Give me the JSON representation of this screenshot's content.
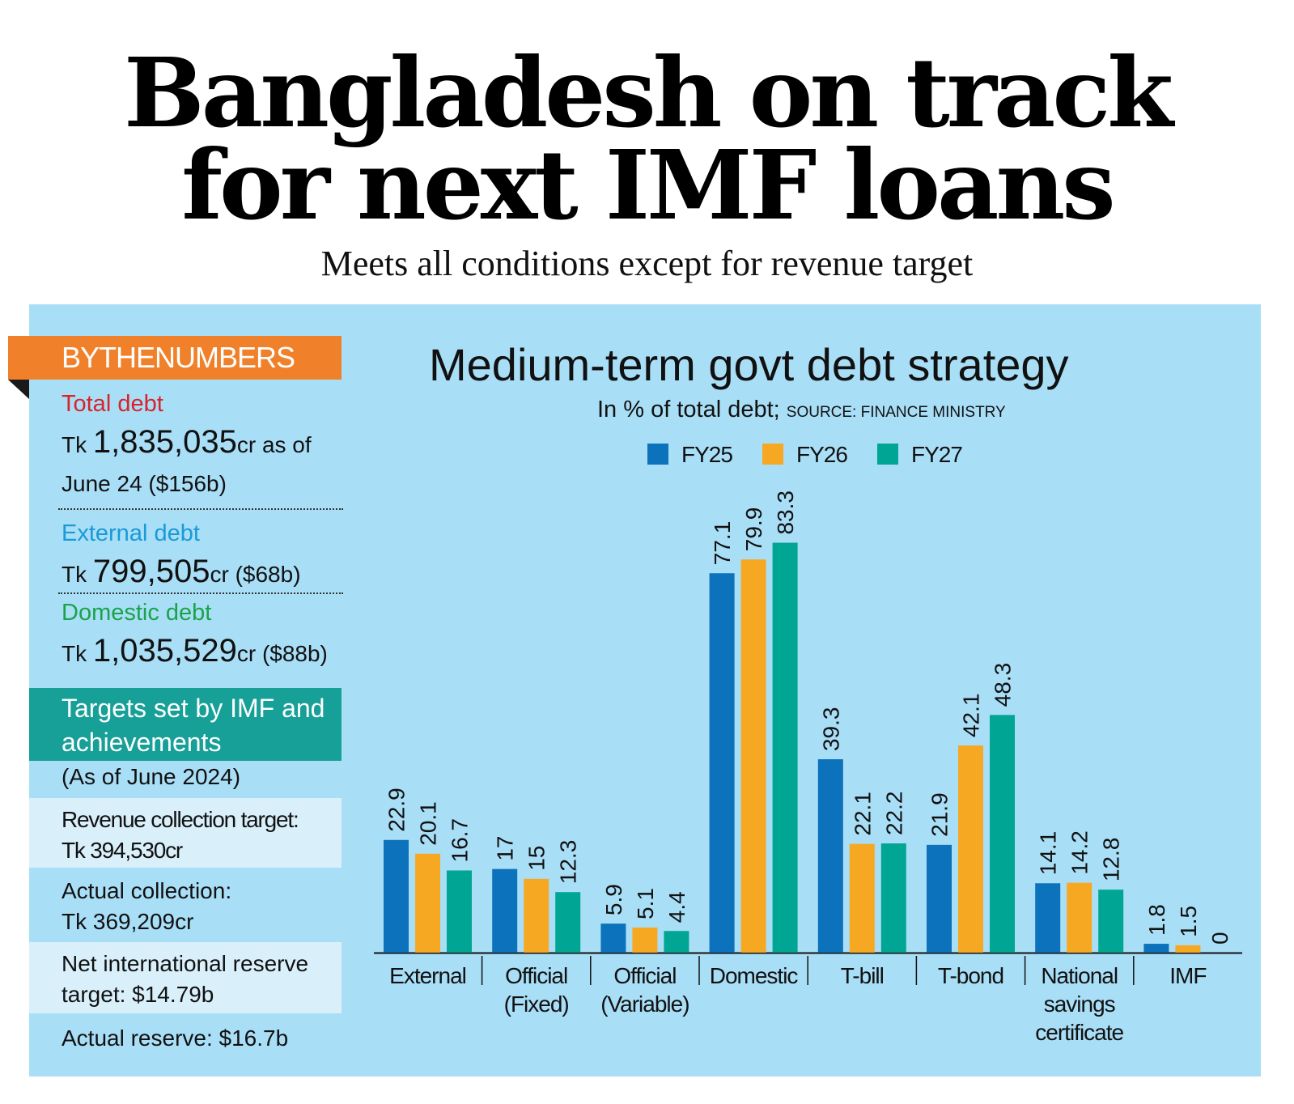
{
  "headline": {
    "line1": "Bangladesh on track",
    "line2": "for next IMF loans",
    "subhead": "Meets all conditions except for revenue target"
  },
  "sidebar": {
    "banner": "BYTHENUMBERS",
    "total_debt": {
      "label": "Total debt",
      "prefix": "Tk ",
      "value": "1,835,035",
      "suffix": "cr as of",
      "line2": "June 24 ($156b)"
    },
    "external_debt": {
      "label": "External debt",
      "prefix": "Tk ",
      "value": "799,505",
      "suffix": "cr ($68b)"
    },
    "domestic_debt": {
      "label": "Domestic debt",
      "prefix": "Tk ",
      "value": "1,035,529",
      "suffix": "cr ($88b)"
    },
    "targets_banner": {
      "line1": "Targets set by IMF and",
      "line2": "achievements"
    },
    "as_of": "(As of June 2024)",
    "targets": [
      {
        "line1": "Revenue collection target:",
        "line2": "Tk 394,530cr"
      },
      {
        "line1": "Actual collection:",
        "line2": "Tk 369,209cr"
      },
      {
        "line1": "Net international reserve",
        "line2": "target: $14.79b"
      },
      {
        "line1": "Actual reserve: $16.7b",
        "line2": ""
      }
    ],
    "colors": {
      "orange": "#f0812a",
      "red": "#d8232a",
      "blue": "#1a9ad6",
      "green": "#1aa34a",
      "teal": "#17a097"
    }
  },
  "chart_data": {
    "type": "bar",
    "title": "Medium-term govt debt strategy",
    "subtitle": "In % of total debt;",
    "source": "SOURCE: FINANCE MINISTRY",
    "categories": [
      [
        "External"
      ],
      [
        "Official",
        "(Fixed)"
      ],
      [
        "Official",
        "(Variable)"
      ],
      [
        "Domestic"
      ],
      [
        "T-bill"
      ],
      [
        "T-bond"
      ],
      [
        "National",
        "savings",
        "certificate"
      ],
      [
        "IMF"
      ]
    ],
    "series": [
      {
        "name": "FY25",
        "color": "#0b72bb",
        "values": [
          22.9,
          17,
          5.9,
          77.1,
          39.3,
          21.9,
          14.1,
          1.8
        ]
      },
      {
        "name": "FY26",
        "color": "#f7a823",
        "values": [
          20.1,
          15,
          5.1,
          79.9,
          22.1,
          42.1,
          14.2,
          1.5
        ]
      },
      {
        "name": "FY27",
        "color": "#00a693",
        "values": [
          16.7,
          12.3,
          4.4,
          83.3,
          22.2,
          48.3,
          12.8,
          0
        ]
      }
    ],
    "ylim": [
      0,
      100
    ],
    "legend": "top-center",
    "grid": false
  }
}
